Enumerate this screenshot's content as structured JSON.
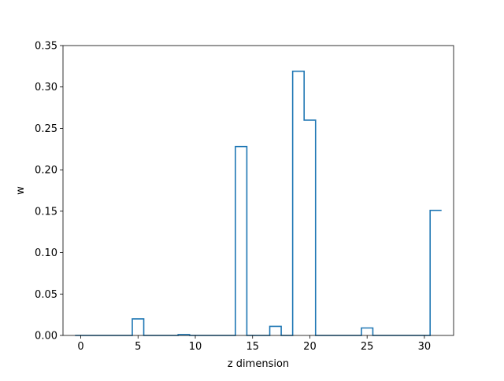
{
  "chart_data": {
    "type": "bar",
    "style": "step-outline",
    "xlabel": "z dimension",
    "ylabel": "w",
    "xlim": [
      -1.55,
      32.55
    ],
    "ylim": [
      0,
      0.35
    ],
    "x_ticks": [
      0,
      5,
      10,
      15,
      20,
      25,
      30
    ],
    "y_ticks": [
      0.0,
      0.05,
      0.1,
      0.15,
      0.2,
      0.25,
      0.3,
      0.35
    ],
    "y_tick_labels": [
      "0.00",
      "0.05",
      "0.10",
      "0.15",
      "0.20",
      "0.25",
      "0.30",
      "0.35"
    ],
    "x_tick_labels": [
      "0",
      "5",
      "10",
      "15",
      "20",
      "25",
      "30"
    ],
    "grid": false,
    "line_color": "#1f77b4",
    "x": [
      0,
      1,
      2,
      3,
      4,
      5,
      6,
      7,
      8,
      9,
      10,
      11,
      12,
      13,
      14,
      15,
      16,
      17,
      18,
      19,
      20,
      21,
      22,
      23,
      24,
      25,
      26,
      27,
      28,
      29,
      30,
      31
    ],
    "values": [
      0,
      0,
      0,
      0,
      0,
      0.02,
      0,
      0,
      0,
      0.001,
      0,
      0,
      0,
      0,
      0.228,
      0,
      0,
      0.011,
      0,
      0.319,
      0.26,
      0,
      0,
      0,
      0,
      0.009,
      0,
      0,
      0,
      0,
      0,
      0.151
    ]
  }
}
